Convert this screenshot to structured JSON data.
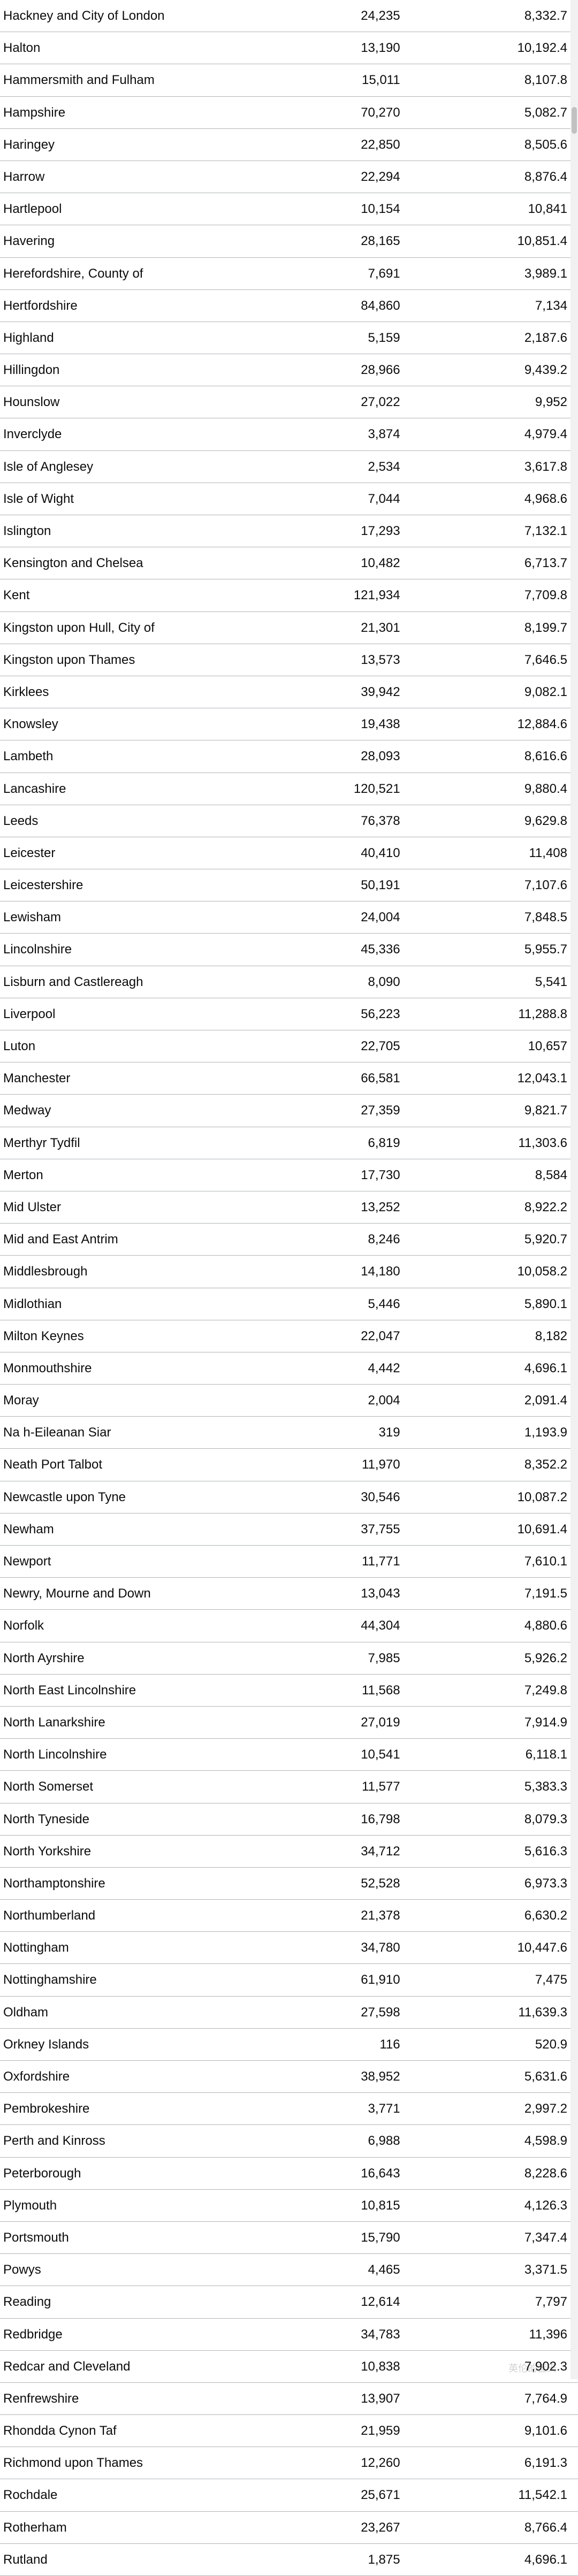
{
  "watermark": "英伦的蓝天",
  "rows": [
    {
      "name": "Hackney and City of London",
      "v1": "24,235",
      "v2": "8,332.7"
    },
    {
      "name": "Halton",
      "v1": "13,190",
      "v2": "10,192.4"
    },
    {
      "name": "Hammersmith and Fulham",
      "v1": "15,011",
      "v2": "8,107.8"
    },
    {
      "name": "Hampshire",
      "v1": "70,270",
      "v2": "5,082.7"
    },
    {
      "name": "Haringey",
      "v1": "22,850",
      "v2": "8,505.6"
    },
    {
      "name": "Harrow",
      "v1": "22,294",
      "v2": "8,876.4"
    },
    {
      "name": "Hartlepool",
      "v1": "10,154",
      "v2": "10,841"
    },
    {
      "name": "Havering",
      "v1": "28,165",
      "v2": "10,851.4"
    },
    {
      "name": "Herefordshire, County of",
      "v1": "7,691",
      "v2": "3,989.1"
    },
    {
      "name": "Hertfordshire",
      "v1": "84,860",
      "v2": "7,134"
    },
    {
      "name": "Highland",
      "v1": "5,159",
      "v2": "2,187.6"
    },
    {
      "name": "Hillingdon",
      "v1": "28,966",
      "v2": "9,439.2"
    },
    {
      "name": "Hounslow",
      "v1": "27,022",
      "v2": "9,952"
    },
    {
      "name": "Inverclyde",
      "v1": "3,874",
      "v2": "4,979.4"
    },
    {
      "name": "Isle of Anglesey",
      "v1": "2,534",
      "v2": "3,617.8"
    },
    {
      "name": "Isle of Wight",
      "v1": "7,044",
      "v2": "4,968.6"
    },
    {
      "name": "Islington",
      "v1": "17,293",
      "v2": "7,132.1"
    },
    {
      "name": "Kensington and Chelsea",
      "v1": "10,482",
      "v2": "6,713.7"
    },
    {
      "name": "Kent",
      "v1": "121,934",
      "v2": "7,709.8"
    },
    {
      "name": "Kingston upon Hull, City of",
      "v1": "21,301",
      "v2": "8,199.7"
    },
    {
      "name": "Kingston upon Thames",
      "v1": "13,573",
      "v2": "7,646.5"
    },
    {
      "name": "Kirklees",
      "v1": "39,942",
      "v2": "9,082.1"
    },
    {
      "name": "Knowsley",
      "v1": "19,438",
      "v2": "12,884.6"
    },
    {
      "name": "Lambeth",
      "v1": "28,093",
      "v2": "8,616.6"
    },
    {
      "name": "Lancashire",
      "v1": "120,521",
      "v2": "9,880.4"
    },
    {
      "name": "Leeds",
      "v1": "76,378",
      "v2": "9,629.8"
    },
    {
      "name": "Leicester",
      "v1": "40,410",
      "v2": "11,408"
    },
    {
      "name": "Leicestershire",
      "v1": "50,191",
      "v2": "7,107.6"
    },
    {
      "name": "Lewisham",
      "v1": "24,004",
      "v2": "7,848.5"
    },
    {
      "name": "Lincolnshire",
      "v1": "45,336",
      "v2": "5,955.7"
    },
    {
      "name": "Lisburn and Castlereagh",
      "v1": "8,090",
      "v2": "5,541"
    },
    {
      "name": "Liverpool",
      "v1": "56,223",
      "v2": "11,288.8"
    },
    {
      "name": "Luton",
      "v1": "22,705",
      "v2": "10,657"
    },
    {
      "name": "Manchester",
      "v1": "66,581",
      "v2": "12,043.1"
    },
    {
      "name": "Medway",
      "v1": "27,359",
      "v2": "9,821.7"
    },
    {
      "name": "Merthyr Tydfil",
      "v1": "6,819",
      "v2": "11,303.6"
    },
    {
      "name": "Merton",
      "v1": "17,730",
      "v2": "8,584"
    },
    {
      "name": "Mid Ulster",
      "v1": "13,252",
      "v2": "8,922.2"
    },
    {
      "name": "Mid and East Antrim",
      "v1": "8,246",
      "v2": "5,920.7"
    },
    {
      "name": "Middlesbrough",
      "v1": "14,180",
      "v2": "10,058.2"
    },
    {
      "name": "Midlothian",
      "v1": "5,446",
      "v2": "5,890.1"
    },
    {
      "name": "Milton Keynes",
      "v1": "22,047",
      "v2": "8,182"
    },
    {
      "name": "Monmouthshire",
      "v1": "4,442",
      "v2": "4,696.1"
    },
    {
      "name": "Moray",
      "v1": "2,004",
      "v2": "2,091.4"
    },
    {
      "name": "Na h-Eileanan Siar",
      "v1": "319",
      "v2": "1,193.9"
    },
    {
      "name": "Neath Port Talbot",
      "v1": "11,970",
      "v2": "8,352.2"
    },
    {
      "name": "Newcastle upon Tyne",
      "v1": "30,546",
      "v2": "10,087.2"
    },
    {
      "name": "Newham",
      "v1": "37,755",
      "v2": "10,691.4"
    },
    {
      "name": "Newport",
      "v1": "11,771",
      "v2": "7,610.1"
    },
    {
      "name": "Newry, Mourne and Down",
      "v1": "13,043",
      "v2": "7,191.5"
    },
    {
      "name": "Norfolk",
      "v1": "44,304",
      "v2": "4,880.6"
    },
    {
      "name": "North Ayrshire",
      "v1": "7,985",
      "v2": "5,926.2"
    },
    {
      "name": "North East Lincolnshire",
      "v1": "11,568",
      "v2": "7,249.8"
    },
    {
      "name": "North Lanarkshire",
      "v1": "27,019",
      "v2": "7,914.9"
    },
    {
      "name": "North Lincolnshire",
      "v1": "10,541",
      "v2": "6,118.1"
    },
    {
      "name": "North Somerset",
      "v1": "11,577",
      "v2": "5,383.3"
    },
    {
      "name": "North Tyneside",
      "v1": "16,798",
      "v2": "8,079.3"
    },
    {
      "name": "North Yorkshire",
      "v1": "34,712",
      "v2": "5,616.3"
    },
    {
      "name": "Northamptonshire",
      "v1": "52,528",
      "v2": "6,973.3"
    },
    {
      "name": "Northumberland",
      "v1": "21,378",
      "v2": "6,630.2"
    },
    {
      "name": "Nottingham",
      "v1": "34,780",
      "v2": "10,447.6"
    },
    {
      "name": "Nottinghamshire",
      "v1": "61,910",
      "v2": "7,475"
    },
    {
      "name": "Oldham",
      "v1": "27,598",
      "v2": "11,639.3"
    },
    {
      "name": "Orkney Islands",
      "v1": "116",
      "v2": "520.9"
    },
    {
      "name": "Oxfordshire",
      "v1": "38,952",
      "v2": "5,631.6"
    },
    {
      "name": "Pembrokeshire",
      "v1": "3,771",
      "v2": "2,997.2"
    },
    {
      "name": "Perth and Kinross",
      "v1": "6,988",
      "v2": "4,598.9"
    },
    {
      "name": "Peterborough",
      "v1": "16,643",
      "v2": "8,228.6"
    },
    {
      "name": "Plymouth",
      "v1": "10,815",
      "v2": "4,126.3"
    },
    {
      "name": "Portsmouth",
      "v1": "15,790",
      "v2": "7,347.4"
    },
    {
      "name": "Powys",
      "v1": "4,465",
      "v2": "3,371.5"
    },
    {
      "name": "Reading",
      "v1": "12,614",
      "v2": "7,797"
    },
    {
      "name": "Redbridge",
      "v1": "34,783",
      "v2": "11,396"
    },
    {
      "name": "Redcar and Cleveland",
      "v1": "10,838",
      "v2": "7,902.3"
    },
    {
      "name": "Renfrewshire",
      "v1": "13,907",
      "v2": "7,764.9"
    },
    {
      "name": "Rhondda Cynon Taf",
      "v1": "21,959",
      "v2": "9,101.6"
    },
    {
      "name": "Richmond upon Thames",
      "v1": "12,260",
      "v2": "6,191.3"
    },
    {
      "name": "Rochdale",
      "v1": "25,671",
      "v2": "11,542.1"
    },
    {
      "name": "Rotherham",
      "v1": "23,267",
      "v2": "8,766.4"
    },
    {
      "name": "Rutland",
      "v1": "1,875",
      "v2": "4,696.1"
    }
  ]
}
